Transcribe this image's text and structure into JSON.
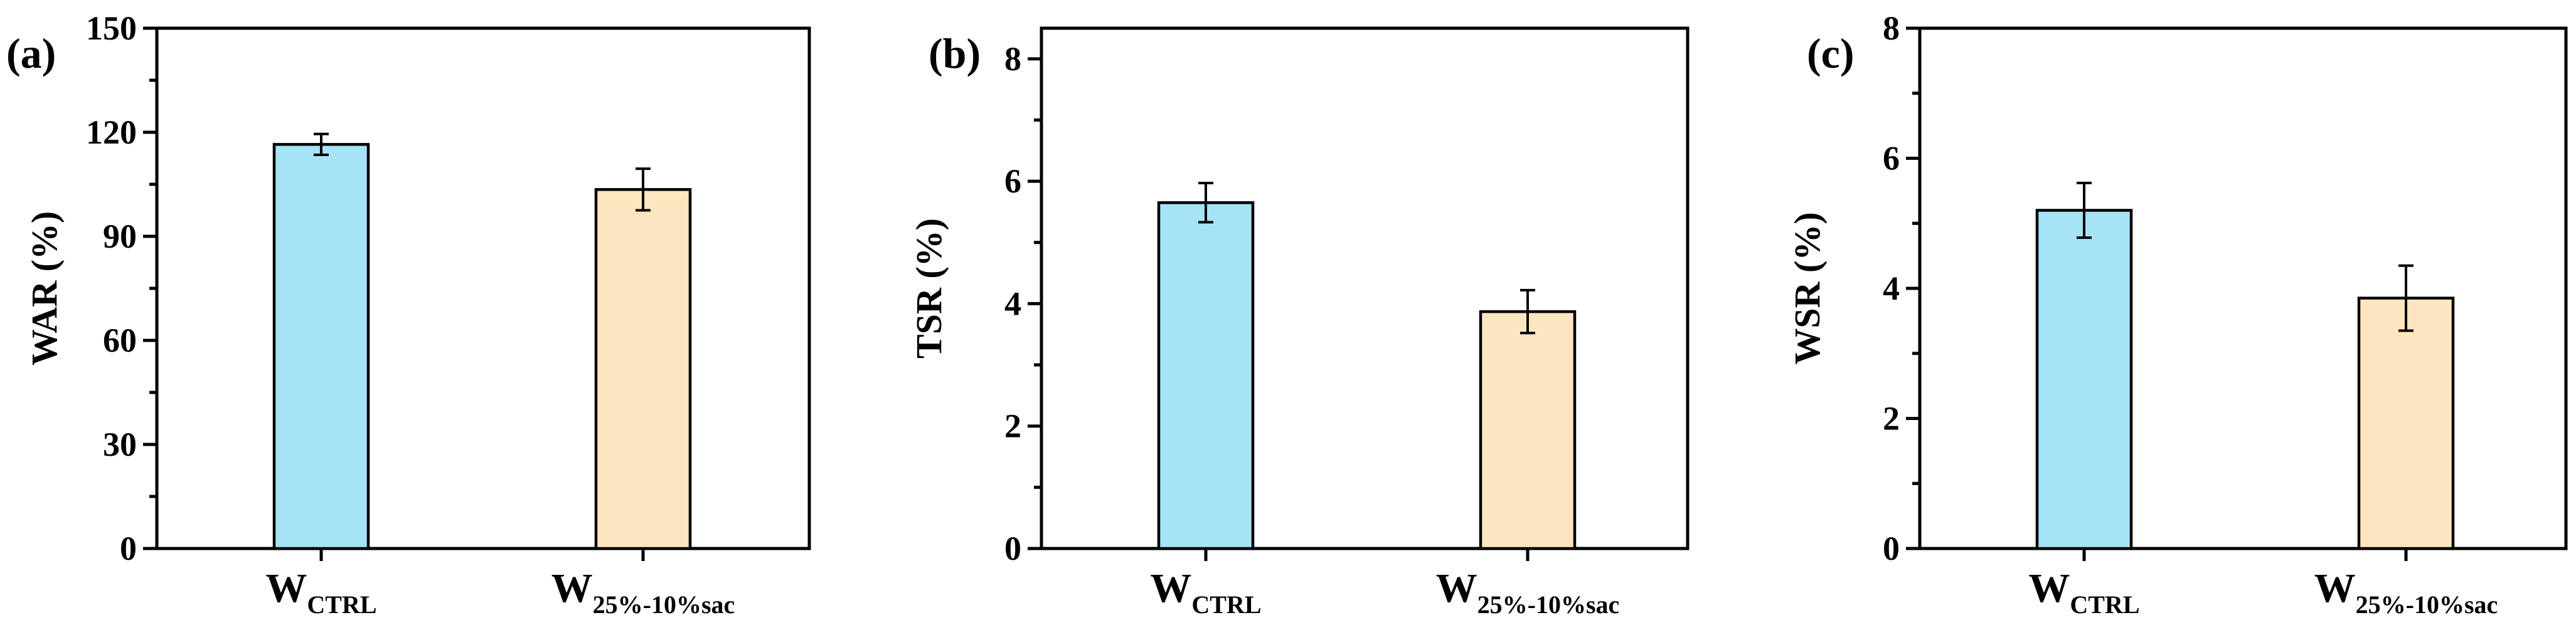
{
  "chart_data": [
    {
      "panel": "(a)",
      "type": "bar",
      "categories": [
        {
          "main": "W",
          "sub": "CTRL"
        },
        {
          "main": "W",
          "sub": "25%-10%sac"
        }
      ],
      "values": [
        116.5,
        103.5
      ],
      "errors": [
        3,
        6
      ],
      "colors": [
        "#a6e3f7",
        "#fde6bf"
      ],
      "ylabel": "WAR (%)",
      "ylim": [
        0,
        150
      ],
      "yticks": [
        0,
        30,
        60,
        90,
        120,
        150
      ],
      "ytick_labels": [
        "0",
        "30",
        "60",
        "90",
        "120",
        "150"
      ]
    },
    {
      "panel": "(b)",
      "type": "bar",
      "categories": [
        {
          "main": "W",
          "sub": "CTRL"
        },
        {
          "main": "W",
          "sub": "25%-10%sac"
        }
      ],
      "values": [
        5.65,
        3.87
      ],
      "errors": [
        0.32,
        0.35
      ],
      "colors": [
        "#a6e3f7",
        "#fde6bf"
      ],
      "ylabel": "TSR (%)",
      "ylim": [
        0,
        8.5
      ],
      "yticks": [
        0,
        2,
        4,
        6,
        8
      ],
      "ytick_labels": [
        "0",
        "2",
        "4",
        "6",
        "8"
      ]
    },
    {
      "panel": "(c)",
      "type": "bar",
      "categories": [
        {
          "main": "W",
          "sub": "CTRL"
        },
        {
          "main": "W",
          "sub": "25%-10%sac"
        }
      ],
      "values": [
        5.2,
        3.85
      ],
      "errors": [
        0.42,
        0.5
      ],
      "colors": [
        "#a6e3f7",
        "#fde6bf"
      ],
      "ylabel": "WSR (%)",
      "ylim": [
        0,
        8
      ],
      "yticks": [
        0,
        2,
        4,
        6,
        8
      ],
      "ytick_labels": [
        "0",
        "2",
        "4",
        "6",
        "8"
      ]
    }
  ]
}
